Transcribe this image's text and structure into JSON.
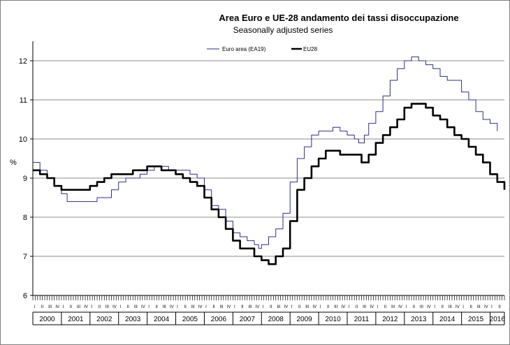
{
  "chart_data": {
    "type": "line",
    "title": "Area Euro e UE-28 andamento dei tassi disoccupazione",
    "subtitle": "Seasonally adjusted series",
    "ylabel": "%",
    "xlabel": "",
    "ylim": [
      6,
      12.5
    ],
    "yticks": [
      "6",
      "7",
      "8",
      "9",
      "10",
      "11",
      "12"
    ],
    "grid": "horizontal",
    "legend_position": "top-right",
    "years": [
      "2000",
      "2001",
      "2002",
      "2003",
      "2004",
      "2005",
      "2006",
      "2007",
      "2008",
      "2009",
      "2010",
      "2011",
      "2012",
      "2013",
      "2014",
      "2015",
      "2016"
    ],
    "quarter_labels": [
      "I",
      "II",
      "III",
      "IV"
    ],
    "x_start": 2000.0,
    "x_end": 2016.5,
    "series": [
      {
        "name": "Euro area (EA19)",
        "color": "#2b2f8a",
        "style": "thin",
        "points": [
          [
            2000.0,
            9.4
          ],
          [
            2000.25,
            9.2
          ],
          [
            2000.5,
            9.0
          ],
          [
            2000.75,
            8.8
          ],
          [
            2001.0,
            8.6
          ],
          [
            2001.2,
            8.4
          ],
          [
            2001.5,
            8.4
          ],
          [
            2001.75,
            8.4
          ],
          [
            2002.0,
            8.4
          ],
          [
            2002.25,
            8.5
          ],
          [
            2002.5,
            8.5
          ],
          [
            2002.75,
            8.7
          ],
          [
            2003.0,
            8.9
          ],
          [
            2003.25,
            9.0
          ],
          [
            2003.5,
            9.0
          ],
          [
            2003.75,
            9.1
          ],
          [
            2004.0,
            9.2
          ],
          [
            2004.25,
            9.3
          ],
          [
            2004.5,
            9.3
          ],
          [
            2004.75,
            9.2
          ],
          [
            2005.0,
            9.2
          ],
          [
            2005.25,
            9.2
          ],
          [
            2005.5,
            9.1
          ],
          [
            2005.75,
            9.0
          ],
          [
            2006.0,
            8.7
          ],
          [
            2006.25,
            8.3
          ],
          [
            2006.5,
            8.2
          ],
          [
            2006.75,
            7.9
          ],
          [
            2007.0,
            7.6
          ],
          [
            2007.25,
            7.5
          ],
          [
            2007.5,
            7.4
          ],
          [
            2007.75,
            7.3
          ],
          [
            2007.9,
            7.2
          ],
          [
            2008.0,
            7.3
          ],
          [
            2008.25,
            7.5
          ],
          [
            2008.5,
            7.7
          ],
          [
            2008.75,
            8.1
          ],
          [
            2009.0,
            8.9
          ],
          [
            2009.25,
            9.5
          ],
          [
            2009.5,
            9.8
          ],
          [
            2009.75,
            10.1
          ],
          [
            2010.0,
            10.2
          ],
          [
            2010.25,
            10.2
          ],
          [
            2010.5,
            10.3
          ],
          [
            2010.75,
            10.2
          ],
          [
            2011.0,
            10.1
          ],
          [
            2011.25,
            10.0
          ],
          [
            2011.4,
            9.9
          ],
          [
            2011.6,
            10.1
          ],
          [
            2011.75,
            10.4
          ],
          [
            2012.0,
            10.7
          ],
          [
            2012.25,
            11.1
          ],
          [
            2012.5,
            11.5
          ],
          [
            2012.75,
            11.8
          ],
          [
            2013.0,
            12.0
          ],
          [
            2013.25,
            12.1
          ],
          [
            2013.5,
            12.0
          ],
          [
            2013.75,
            11.9
          ],
          [
            2014.0,
            11.8
          ],
          [
            2014.25,
            11.6
          ],
          [
            2014.5,
            11.5
          ],
          [
            2014.75,
            11.5
          ],
          [
            2015.0,
            11.2
          ],
          [
            2015.25,
            11.0
          ],
          [
            2015.5,
            10.7
          ],
          [
            2015.75,
            10.5
          ],
          [
            2016.0,
            10.4
          ],
          [
            2016.25,
            10.2
          ]
        ]
      },
      {
        "name": "EU28",
        "color": "#000000",
        "style": "thick",
        "points": [
          [
            2000.0,
            9.2
          ],
          [
            2000.25,
            9.1
          ],
          [
            2000.5,
            9.0
          ],
          [
            2000.75,
            8.8
          ],
          [
            2001.0,
            8.7
          ],
          [
            2001.25,
            8.7
          ],
          [
            2001.5,
            8.7
          ],
          [
            2001.75,
            8.7
          ],
          [
            2002.0,
            8.8
          ],
          [
            2002.25,
            8.9
          ],
          [
            2002.5,
            9.0
          ],
          [
            2002.75,
            9.1
          ],
          [
            2003.0,
            9.1
          ],
          [
            2003.25,
            9.1
          ],
          [
            2003.5,
            9.2
          ],
          [
            2003.75,
            9.2
          ],
          [
            2004.0,
            9.3
          ],
          [
            2004.25,
            9.3
          ],
          [
            2004.5,
            9.2
          ],
          [
            2004.75,
            9.2
          ],
          [
            2005.0,
            9.1
          ],
          [
            2005.25,
            9.0
          ],
          [
            2005.5,
            8.9
          ],
          [
            2005.75,
            8.8
          ],
          [
            2006.0,
            8.5
          ],
          [
            2006.25,
            8.2
          ],
          [
            2006.5,
            8.0
          ],
          [
            2006.75,
            7.7
          ],
          [
            2007.0,
            7.4
          ],
          [
            2007.25,
            7.2
          ],
          [
            2007.5,
            7.2
          ],
          [
            2007.75,
            7.0
          ],
          [
            2008.0,
            6.9
          ],
          [
            2008.25,
            6.8
          ],
          [
            2008.5,
            7.0
          ],
          [
            2008.75,
            7.2
          ],
          [
            2009.0,
            7.9
          ],
          [
            2009.25,
            8.7
          ],
          [
            2009.5,
            9.0
          ],
          [
            2009.75,
            9.3
          ],
          [
            2010.0,
            9.5
          ],
          [
            2010.25,
            9.7
          ],
          [
            2010.5,
            9.7
          ],
          [
            2010.75,
            9.6
          ],
          [
            2011.0,
            9.6
          ],
          [
            2011.25,
            9.6
          ],
          [
            2011.5,
            9.4
          ],
          [
            2011.75,
            9.6
          ],
          [
            2012.0,
            9.9
          ],
          [
            2012.25,
            10.1
          ],
          [
            2012.5,
            10.3
          ],
          [
            2012.75,
            10.5
          ],
          [
            2013.0,
            10.8
          ],
          [
            2013.25,
            10.9
          ],
          [
            2013.5,
            10.9
          ],
          [
            2013.75,
            10.8
          ],
          [
            2014.0,
            10.6
          ],
          [
            2014.25,
            10.5
          ],
          [
            2014.5,
            10.3
          ],
          [
            2014.75,
            10.1
          ],
          [
            2015.0,
            10.0
          ],
          [
            2015.25,
            9.8
          ],
          [
            2015.5,
            9.6
          ],
          [
            2015.75,
            9.4
          ],
          [
            2016.0,
            9.1
          ],
          [
            2016.25,
            8.9
          ],
          [
            2016.5,
            8.7
          ]
        ]
      }
    ]
  }
}
